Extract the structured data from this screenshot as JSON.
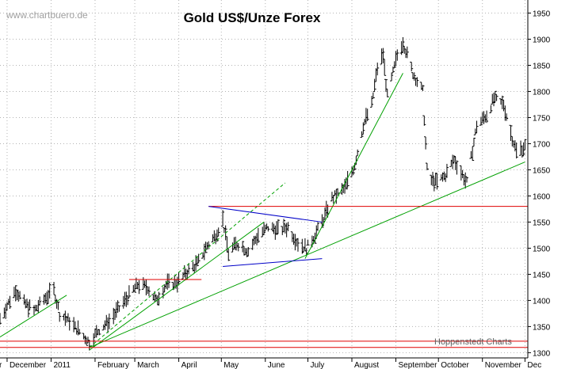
{
  "chart_data": {
    "type": "ohlc",
    "title": "Gold US$/Unze Forex",
    "watermark": "www.chartbuero.de",
    "credit": "Hoppenstedt Charts",
    "x_labels": [
      "r",
      "December",
      "2011",
      "February",
      "March",
      "April",
      "May",
      "June",
      "July",
      "August",
      "September",
      "October",
      "November",
      "Dec"
    ],
    "y_ticks": [
      1300,
      1350,
      1400,
      1450,
      1500,
      1550,
      1600,
      1650,
      1700,
      1750,
      1800,
      1850,
      1900,
      1950
    ],
    "y_tick_labels": [
      "1300",
      "1350",
      "1400",
      "1450",
      "1500",
      "1550",
      "1600",
      "1650",
      "1700",
      "1750",
      "1800",
      "1850",
      "1900",
      "1950"
    ],
    "ylim": [
      1290,
      1975
    ],
    "xlim": [
      "2010-11-26",
      "2011-12-03"
    ],
    "grid": true,
    "colors": {
      "bars": "#000000",
      "support_lines": "#00a000",
      "horizontal_lines": "#e00000",
      "triangle_lines": "#0000c8",
      "grid": "#b4b4b4",
      "title": "#000000",
      "watermark": "#a0a0a0",
      "credit": "#606060"
    },
    "price_path": [
      [
        "2010-11-26",
        1365
      ],
      [
        "2010-12-02",
        1395
      ],
      [
        "2010-12-07",
        1420
      ],
      [
        "2010-12-13",
        1395
      ],
      [
        "2010-12-20",
        1380
      ],
      [
        "2010-12-28",
        1405
      ],
      [
        "2011-01-03",
        1420
      ],
      [
        "2011-01-07",
        1375
      ],
      [
        "2011-01-14",
        1360
      ],
      [
        "2011-01-21",
        1340
      ],
      [
        "2011-01-28",
        1320
      ],
      [
        "2011-02-04",
        1345
      ],
      [
        "2011-02-11",
        1360
      ],
      [
        "2011-02-18",
        1385
      ],
      [
        "2011-02-25",
        1410
      ],
      [
        "2011-03-03",
        1430
      ],
      [
        "2011-03-10",
        1425
      ],
      [
        "2011-03-16",
        1400
      ],
      [
        "2011-03-23",
        1430
      ],
      [
        "2011-03-31",
        1435
      ],
      [
        "2011-04-07",
        1455
      ],
      [
        "2011-04-14",
        1470
      ],
      [
        "2011-04-21",
        1505
      ],
      [
        "2011-04-27",
        1525
      ],
      [
        "2011-05-02",
        1555
      ],
      [
        "2011-05-06",
        1490
      ],
      [
        "2011-05-12",
        1510
      ],
      [
        "2011-05-20",
        1495
      ],
      [
        "2011-05-27",
        1525
      ],
      [
        "2011-06-03",
        1540
      ],
      [
        "2011-06-10",
        1535
      ],
      [
        "2011-06-17",
        1540
      ],
      [
        "2011-06-24",
        1510
      ],
      [
        "2011-06-30",
        1500
      ],
      [
        "2011-07-06",
        1525
      ],
      [
        "2011-07-11",
        1550
      ],
      [
        "2011-07-18",
        1595
      ],
      [
        "2011-07-27",
        1615
      ],
      [
        "2011-08-03",
        1660
      ],
      [
        "2011-08-09",
        1735
      ],
      [
        "2011-08-15",
        1775
      ],
      [
        "2011-08-19",
        1845
      ],
      [
        "2011-08-23",
        1870
      ],
      [
        "2011-08-26",
        1790
      ],
      [
        "2011-09-02",
        1870
      ],
      [
        "2011-09-06",
        1895
      ],
      [
        "2011-09-13",
        1835
      ],
      [
        "2011-09-20",
        1800
      ],
      [
        "2011-09-23",
        1650
      ],
      [
        "2011-09-26",
        1630
      ],
      [
        "2011-09-30",
        1625
      ],
      [
        "2011-10-06",
        1640
      ],
      [
        "2011-10-12",
        1670
      ],
      [
        "2011-10-18",
        1640
      ],
      [
        "2011-10-21",
        1625
      ],
      [
        "2011-10-28",
        1735
      ],
      [
        "2011-11-04",
        1755
      ],
      [
        "2011-11-09",
        1785
      ],
      [
        "2011-11-16",
        1775
      ],
      [
        "2011-11-21",
        1720
      ],
      [
        "2011-11-25",
        1685
      ],
      [
        "2011-12-01",
        1695
      ]
    ],
    "trend_lines": [
      {
        "kind": "support",
        "style": "solid",
        "from": [
          "2010-11-26",
          1330
        ],
        "to": [
          "2011-01-12",
          1410
        ]
      },
      {
        "kind": "support",
        "style": "solid",
        "from": [
          "2011-01-28",
          1305
        ],
        "to": [
          "2011-05-31",
          1550
        ]
      },
      {
        "kind": "support",
        "style": "dashed",
        "from": [
          "2011-01-28",
          1310
        ],
        "to": [
          "2011-06-15",
          1625
        ]
      },
      {
        "kind": "support",
        "style": "solid",
        "from": [
          "2011-01-28",
          1310
        ],
        "to": [
          "2011-12-01",
          1665
        ]
      },
      {
        "kind": "support",
        "style": "solid",
        "from": [
          "2011-06-29",
          1480
        ],
        "to": [
          "2011-09-06",
          1835
        ]
      },
      {
        "kind": "horizontal",
        "style": "solid",
        "from": [
          "2011-02-25",
          1440
        ],
        "to": [
          "2011-04-17",
          1440
        ]
      },
      {
        "kind": "horizontal",
        "style": "solid",
        "from": [
          "2011-04-22",
          1580
        ],
        "to": [
          "2011-12-03",
          1580
        ]
      },
      {
        "kind": "horizontal",
        "style": "solid",
        "from": [
          "2010-11-26",
          1322
        ],
        "to": [
          "2011-12-03",
          1322
        ]
      },
      {
        "kind": "horizontal",
        "style": "solid",
        "from": [
          "2010-11-26",
          1310
        ],
        "to": [
          "2011-12-03",
          1310
        ]
      },
      {
        "kind": "triangle",
        "style": "solid",
        "from": [
          "2011-04-22",
          1580
        ],
        "to": [
          "2011-07-11",
          1550
        ]
      },
      {
        "kind": "triangle",
        "style": "solid",
        "from": [
          "2011-05-02",
          1465
        ],
        "to": [
          "2011-07-11",
          1480
        ]
      }
    ]
  }
}
